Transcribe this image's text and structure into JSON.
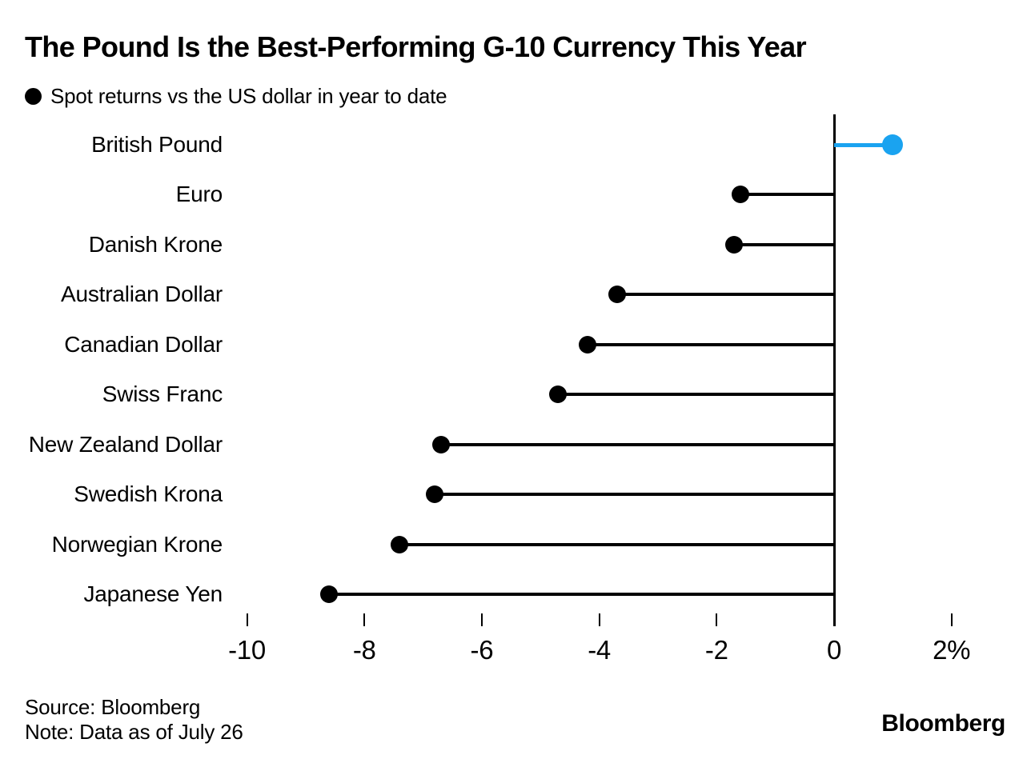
{
  "title": "The Pound Is the Best-Performing G-10 Currency This Year",
  "legend": {
    "label": "Spot returns vs the US dollar in year to date"
  },
  "chart_data": {
    "type": "bar",
    "subtype": "horizontal-lollipop",
    "title": "The Pound Is the Best-Performing G-10 Currency This Year",
    "subtitle": "Spot returns vs the US dollar in year to date",
    "categories": [
      "British Pound",
      "Euro",
      "Danish Krone",
      "Australian Dollar",
      "Canadian Dollar",
      "Swiss Franc",
      "New Zealand Dollar",
      "Swedish Krona",
      "Norwegian Krone",
      "Japanese Yen"
    ],
    "values": [
      1.0,
      -1.6,
      -1.7,
      -3.7,
      -4.2,
      -4.7,
      -6.7,
      -6.8,
      -7.4,
      -8.6
    ],
    "unit": "%",
    "highlight_index": 0,
    "highlight_category": "British Pound",
    "x_ticks": [
      {
        "value": -10,
        "label": "-10"
      },
      {
        "value": -8,
        "label": "-8"
      },
      {
        "value": -6,
        "label": "-6"
      },
      {
        "value": -4,
        "label": "-4"
      },
      {
        "value": -2,
        "label": "-2"
      },
      {
        "value": 0,
        "label": "0"
      },
      {
        "value": 2,
        "label": "2%"
      }
    ],
    "xlim": [
      -10.5,
      2.6
    ],
    "grid": false,
    "legend_position": "top-left",
    "colors": {
      "default": "#000000",
      "highlight": "#1aa3f0",
      "axis": "#000000"
    }
  },
  "footer": {
    "source": "Source: Bloomberg",
    "note": "Note: Data as of July 26",
    "brand": "Bloomberg"
  }
}
